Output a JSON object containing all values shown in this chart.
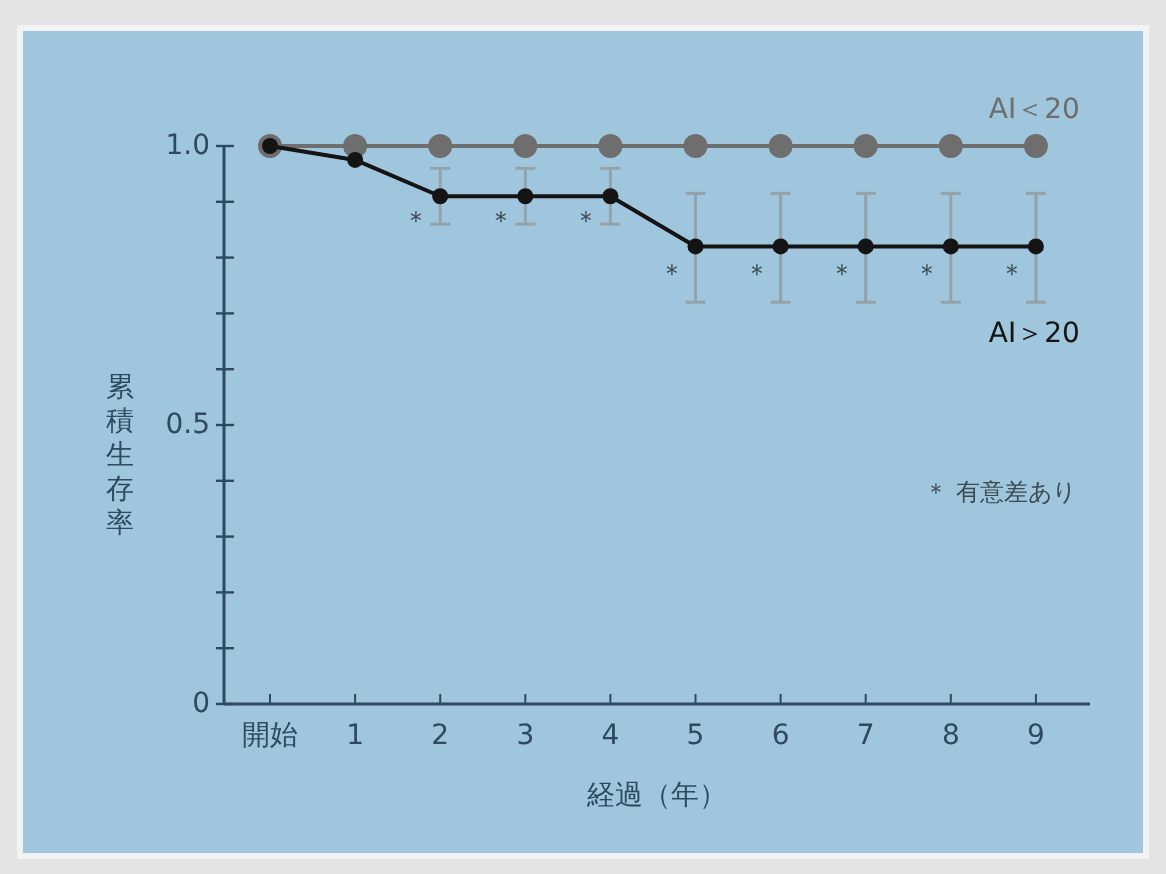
{
  "chart_data": {
    "type": "line",
    "xlabel": "経過（年）",
    "ylabel": "累積生存率",
    "categories": [
      "開始",
      "1",
      "2",
      "3",
      "4",
      "5",
      "6",
      "7",
      "8",
      "9"
    ],
    "series": [
      {
        "name": "AI＜20",
        "color": "#6e6e6e",
        "values": [
          1.0,
          1.0,
          1.0,
          1.0,
          1.0,
          1.0,
          1.0,
          1.0,
          1.0,
          1.0
        ]
      },
      {
        "name": "AI＞20",
        "color": "#141414",
        "values": [
          1.0,
          0.975,
          0.91,
          0.91,
          0.91,
          0.82,
          0.82,
          0.82,
          0.82,
          0.82
        ],
        "errors": [
          null,
          null,
          [
            0.86,
            0.96
          ],
          [
            0.86,
            0.96
          ],
          [
            0.86,
            0.96
          ],
          [
            0.72,
            0.915
          ],
          [
            0.72,
            0.915
          ],
          [
            0.72,
            0.915
          ],
          [
            0.72,
            0.915
          ],
          [
            0.72,
            0.915
          ]
        ]
      }
    ],
    "ylim": [
      0,
      1.0
    ],
    "yticks": [
      {
        "value": 0,
        "label": "0"
      },
      {
        "value": 0.1,
        "label": null
      },
      {
        "value": 0.2,
        "label": null
      },
      {
        "value": 0.3,
        "label": null
      },
      {
        "value": 0.4,
        "label": null
      },
      {
        "value": 0.5,
        "label": "0.5"
      },
      {
        "value": 0.6,
        "label": null
      },
      {
        "value": 0.7,
        "label": null
      },
      {
        "value": 0.8,
        "label": null
      },
      {
        "value": 0.9,
        "label": null
      },
      {
        "value": 1.0,
        "label": "1.0"
      }
    ],
    "annotations": [
      {
        "text": "＊",
        "x": "2",
        "y": 0.87
      },
      {
        "text": "＊",
        "x": "3",
        "y": 0.87
      },
      {
        "text": "＊",
        "x": "4",
        "y": 0.87
      },
      {
        "text": "＊",
        "x": "5",
        "y": 0.775
      },
      {
        "text": "＊",
        "x": "6",
        "y": 0.775
      },
      {
        "text": "＊",
        "x": "7",
        "y": 0.775
      },
      {
        "text": "＊",
        "x": "8",
        "y": 0.775
      },
      {
        "text": "＊",
        "x": "9",
        "y": 0.775
      },
      "＊ 有意差あり"
    ],
    "marker": "circle",
    "line_style": "solid",
    "grid": false,
    "legend": false
  }
}
